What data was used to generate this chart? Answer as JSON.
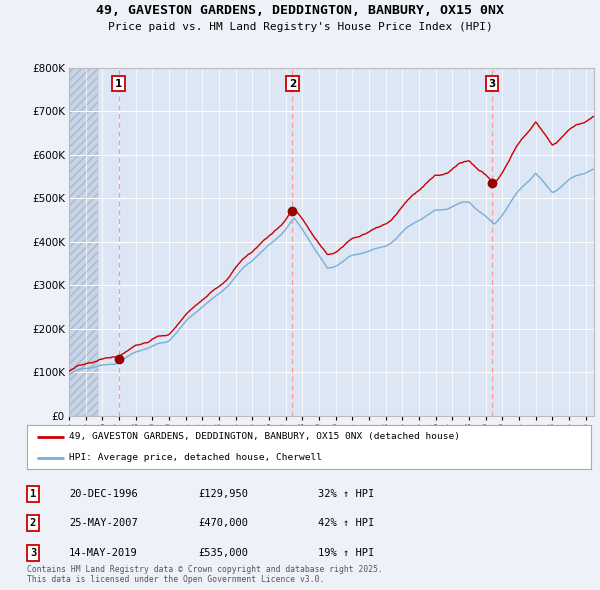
{
  "title": "49, GAVESTON GARDENS, DEDDINGTON, BANBURY, OX15 0NX",
  "subtitle": "Price paid vs. HM Land Registry's House Price Index (HPI)",
  "background_color": "#eef2f8",
  "plot_bg_color": "#dce6f5",
  "grid_color": "#ffffff",
  "ylim": [
    0,
    800000
  ],
  "yticks": [
    0,
    100000,
    200000,
    300000,
    400000,
    500000,
    600000,
    700000,
    800000
  ],
  "ytick_labels": [
    "£0",
    "£100K",
    "£200K",
    "£300K",
    "£400K",
    "£500K",
    "£600K",
    "£700K",
    "£800K"
  ],
  "xlim_start": 1994.0,
  "xlim_end": 2025.5,
  "sale_dates": [
    1996.97,
    2007.4,
    2019.37
  ],
  "sale_prices": [
    129950,
    470000,
    535000
  ],
  "sale_labels": [
    "1",
    "2",
    "3"
  ],
  "red_line_color": "#cc0000",
  "blue_line_color": "#7aaed6",
  "sale_dot_color": "#990000",
  "vline_color": "#ff9999",
  "legend_label_red": "49, GAVESTON GARDENS, DEDDINGTON, BANBURY, OX15 0NX (detached house)",
  "legend_label_blue": "HPI: Average price, detached house, Cherwell",
  "table_entries": [
    {
      "num": "1",
      "date": "20-DEC-1996",
      "price": "£129,950",
      "change": "32% ↑ HPI"
    },
    {
      "num": "2",
      "date": "25-MAY-2007",
      "price": "£470,000",
      "change": "42% ↑ HPI"
    },
    {
      "num": "3",
      "date": "14-MAY-2019",
      "price": "£535,000",
      "change": "19% ↑ HPI"
    }
  ],
  "footnote": "Contains HM Land Registry data © Crown copyright and database right 2025.\nThis data is licensed under the Open Government Licence v3.0.",
  "hatch_end": 1995.75
}
